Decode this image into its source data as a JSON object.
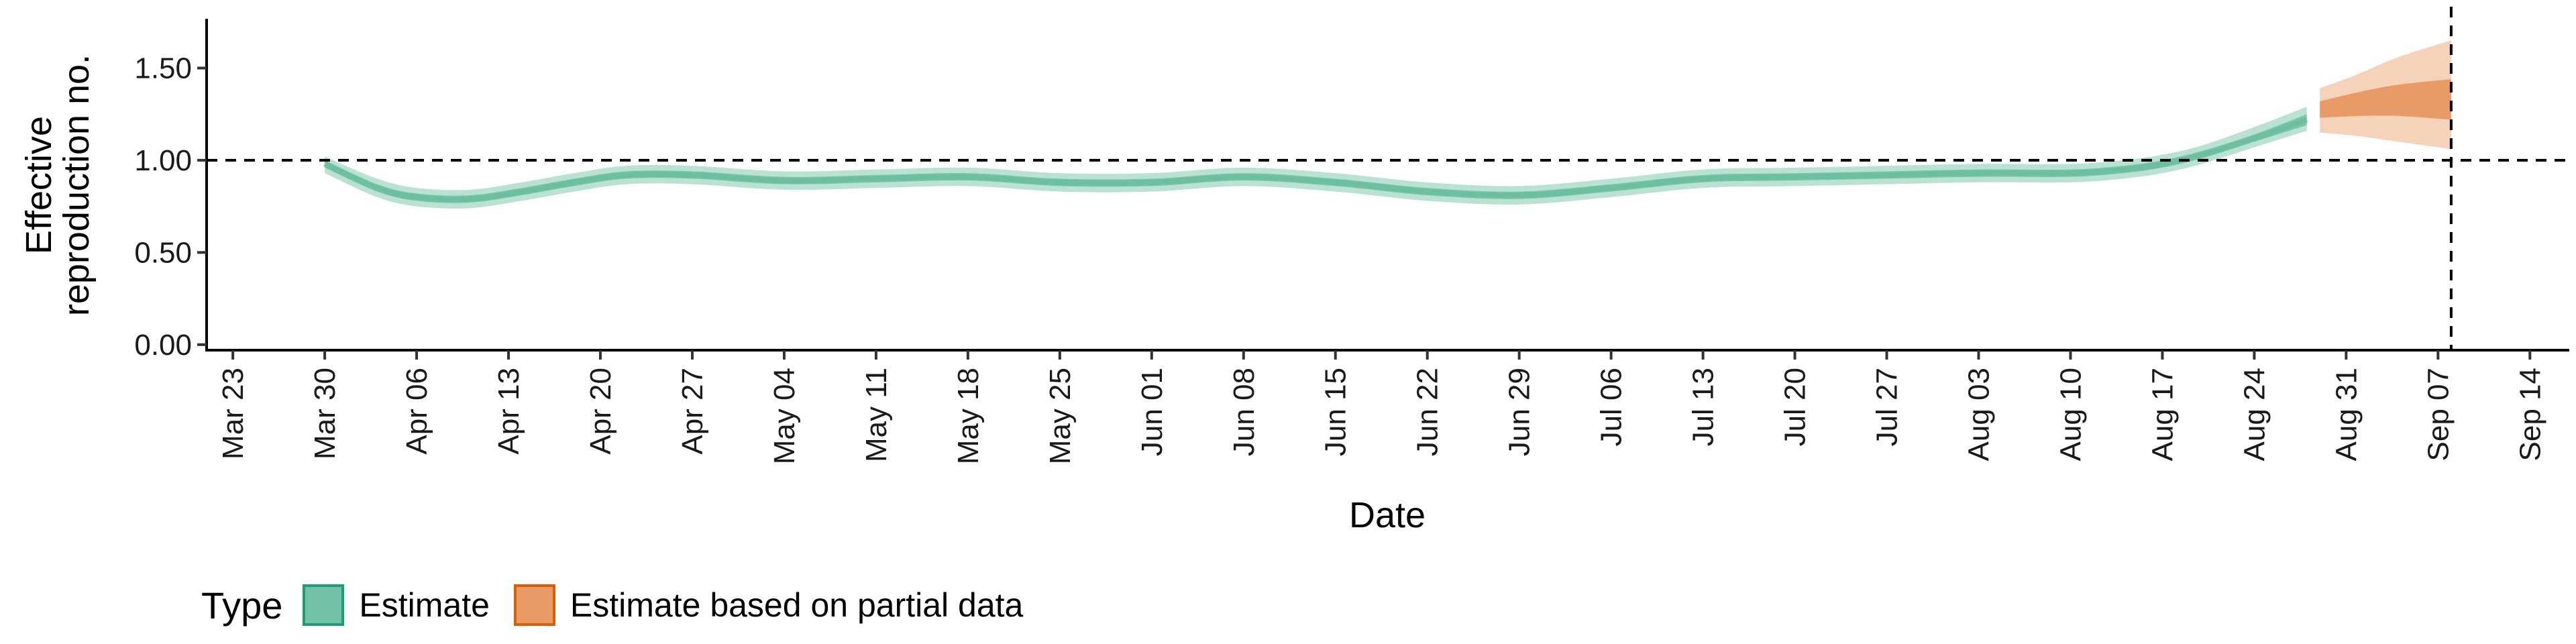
{
  "chart_data": {
    "type": "line",
    "xlabel": "Date",
    "ylabel": "Effective reproduction no.",
    "ylim": [
      -0.03,
      1.76
    ],
    "yticks": [
      "0.00",
      "0.50",
      "1.00",
      "1.50"
    ],
    "x_tick_labels": [
      "Mar 23",
      "Mar 30",
      "Apr 06",
      "Apr 13",
      "Apr 20",
      "Apr 27",
      "May 04",
      "May 11",
      "May 18",
      "May 25",
      "Jun 01",
      "Jun 08",
      "Jun 15",
      "Jun 22",
      "Jun 29",
      "Jul 06",
      "Jul 13",
      "Jul 20",
      "Jul 27",
      "Aug 03",
      "Aug 10",
      "Aug 17",
      "Aug 24",
      "Aug 31",
      "Sep 07",
      "Sep 14"
    ],
    "xlim": [
      "2020-03-21",
      "2020-09-17"
    ],
    "reference_line_y": 1.0,
    "reference_line_x": "2020-09-08",
    "legend": {
      "title": "Type",
      "placement": "bottom-left",
      "entries": [
        {
          "label": "Estimate",
          "fill": "#72c1a6",
          "border": "#1b9e77"
        },
        {
          "label": "Estimate based on partial data",
          "fill": "#e89b66",
          "border": "#d95f02"
        }
      ]
    },
    "series": [
      {
        "name": "Estimate",
        "color_inner": "#7cc6ac",
        "color_outer": "#b3dfcf",
        "points": [
          {
            "x": "2020-03-30",
            "median": 0.98,
            "lower50": 0.96,
            "upper50": 1.0,
            "lower90": 0.93,
            "upper90": 1.02
          },
          {
            "x": "2020-04-03",
            "median": 0.85,
            "lower50": 0.83,
            "upper50": 0.87,
            "lower90": 0.8,
            "upper90": 0.9
          },
          {
            "x": "2020-04-06",
            "median": 0.8,
            "lower50": 0.78,
            "upper50": 0.82,
            "lower90": 0.75,
            "upper90": 0.85
          },
          {
            "x": "2020-04-10",
            "median": 0.79,
            "lower50": 0.77,
            "upper50": 0.81,
            "lower90": 0.74,
            "upper90": 0.84
          },
          {
            "x": "2020-04-14",
            "median": 0.83,
            "lower50": 0.81,
            "upper50": 0.85,
            "lower90": 0.78,
            "upper90": 0.88
          },
          {
            "x": "2020-04-18",
            "median": 0.88,
            "lower50": 0.86,
            "upper50": 0.9,
            "lower90": 0.83,
            "upper90": 0.93
          },
          {
            "x": "2020-04-22",
            "median": 0.92,
            "lower50": 0.9,
            "upper50": 0.94,
            "lower90": 0.87,
            "upper90": 0.97
          },
          {
            "x": "2020-04-27",
            "median": 0.92,
            "lower50": 0.9,
            "upper50": 0.94,
            "lower90": 0.87,
            "upper90": 0.97
          },
          {
            "x": "2020-05-04",
            "median": 0.89,
            "lower50": 0.87,
            "upper50": 0.91,
            "lower90": 0.84,
            "upper90": 0.94
          },
          {
            "x": "2020-05-11",
            "median": 0.9,
            "lower50": 0.88,
            "upper50": 0.92,
            "lower90": 0.85,
            "upper90": 0.95
          },
          {
            "x": "2020-05-18",
            "median": 0.91,
            "lower50": 0.89,
            "upper50": 0.93,
            "lower90": 0.86,
            "upper90": 0.96
          },
          {
            "x": "2020-05-25",
            "median": 0.88,
            "lower50": 0.86,
            "upper50": 0.9,
            "lower90": 0.83,
            "upper90": 0.93
          },
          {
            "x": "2020-06-01",
            "median": 0.88,
            "lower50": 0.86,
            "upper50": 0.9,
            "lower90": 0.83,
            "upper90": 0.93
          },
          {
            "x": "2020-06-08",
            "median": 0.91,
            "lower50": 0.89,
            "upper50": 0.93,
            "lower90": 0.86,
            "upper90": 0.96
          },
          {
            "x": "2020-06-15",
            "median": 0.88,
            "lower50": 0.86,
            "upper50": 0.9,
            "lower90": 0.83,
            "upper90": 0.93
          },
          {
            "x": "2020-06-22",
            "median": 0.83,
            "lower50": 0.81,
            "upper50": 0.85,
            "lower90": 0.78,
            "upper90": 0.88
          },
          {
            "x": "2020-06-29",
            "median": 0.81,
            "lower50": 0.79,
            "upper50": 0.83,
            "lower90": 0.76,
            "upper90": 0.86
          },
          {
            "x": "2020-07-06",
            "median": 0.85,
            "lower50": 0.83,
            "upper50": 0.87,
            "lower90": 0.8,
            "upper90": 0.9
          },
          {
            "x": "2020-07-13",
            "median": 0.9,
            "lower50": 0.88,
            "upper50": 0.92,
            "lower90": 0.85,
            "upper90": 0.95
          },
          {
            "x": "2020-07-20",
            "median": 0.91,
            "lower50": 0.89,
            "upper50": 0.93,
            "lower90": 0.86,
            "upper90": 0.96
          },
          {
            "x": "2020-07-27",
            "median": 0.92,
            "lower50": 0.9,
            "upper50": 0.94,
            "lower90": 0.87,
            "upper90": 0.97
          },
          {
            "x": "2020-08-03",
            "median": 0.93,
            "lower50": 0.91,
            "upper50": 0.95,
            "lower90": 0.88,
            "upper90": 0.98
          },
          {
            "x": "2020-08-10",
            "median": 0.93,
            "lower50": 0.91,
            "upper50": 0.95,
            "lower90": 0.88,
            "upper90": 0.98
          },
          {
            "x": "2020-08-14",
            "median": 0.95,
            "lower50": 0.93,
            "upper50": 0.97,
            "lower90": 0.9,
            "upper90": 1.0
          },
          {
            "x": "2020-08-17",
            "median": 0.98,
            "lower50": 0.96,
            "upper50": 1.0,
            "lower90": 0.93,
            "upper90": 1.03
          },
          {
            "x": "2020-08-20",
            "median": 1.03,
            "lower50": 1.01,
            "upper50": 1.05,
            "lower90": 0.98,
            "upper90": 1.08
          },
          {
            "x": "2020-08-24",
            "median": 1.12,
            "lower50": 1.1,
            "upper50": 1.14,
            "lower90": 1.07,
            "upper90": 1.18
          },
          {
            "x": "2020-08-28",
            "median": 1.22,
            "lower50": 1.19,
            "upper50": 1.25,
            "lower90": 1.16,
            "upper90": 1.29
          }
        ]
      },
      {
        "name": "Estimate based on partial data",
        "color_inner": "#e89b66",
        "color_outer": "#f4cdb2",
        "points": [
          {
            "x": "2020-08-29",
            "lower50": 1.23,
            "upper50": 1.32,
            "lower90": 1.15,
            "upper90": 1.39
          },
          {
            "x": "2020-09-01",
            "lower50": 1.24,
            "upper50": 1.37,
            "lower90": 1.13,
            "upper90": 1.47
          },
          {
            "x": "2020-09-04",
            "lower50": 1.24,
            "upper50": 1.41,
            "lower90": 1.1,
            "upper90": 1.56
          },
          {
            "x": "2020-09-08",
            "lower50": 1.22,
            "upper50": 1.44,
            "lower90": 1.06,
            "upper90": 1.65
          }
        ]
      }
    ]
  }
}
